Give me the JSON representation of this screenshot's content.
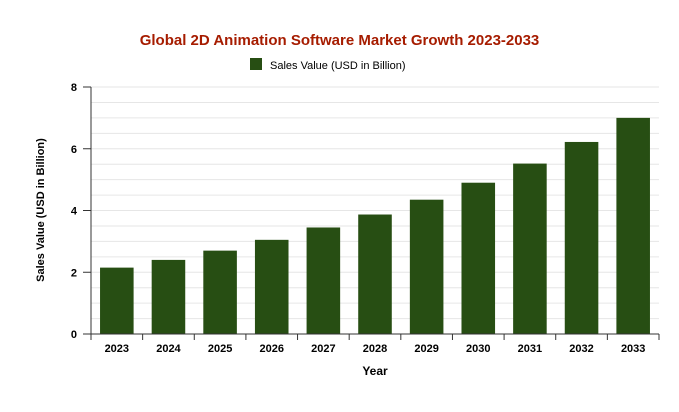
{
  "chart_data": {
    "type": "bar",
    "title": "Global 2D Animation Software Market Growth 2023-2033",
    "xlabel": "Year",
    "ylabel": "Sales Value (USD in Billion)",
    "legend_position": "top-center",
    "grid": true,
    "ylim": [
      0,
      8
    ],
    "yticks": [
      "0",
      "2",
      "4",
      "6",
      "8"
    ],
    "categories": [
      "2023",
      "2024",
      "2025",
      "2026",
      "2027",
      "2028",
      "2029",
      "2030",
      "2031",
      "2032",
      "2033"
    ],
    "series": [
      {
        "name": "Sales Value (USD in Billion)",
        "color": "#274e13",
        "values": [
          2.15,
          2.4,
          2.7,
          3.05,
          3.45,
          3.87,
          4.35,
          4.9,
          5.52,
          6.22,
          7.0
        ]
      }
    ],
    "colors": {
      "title": "#a61c00",
      "text": "#000000",
      "grid": "#e6e6e6",
      "axis": "#333333"
    }
  }
}
